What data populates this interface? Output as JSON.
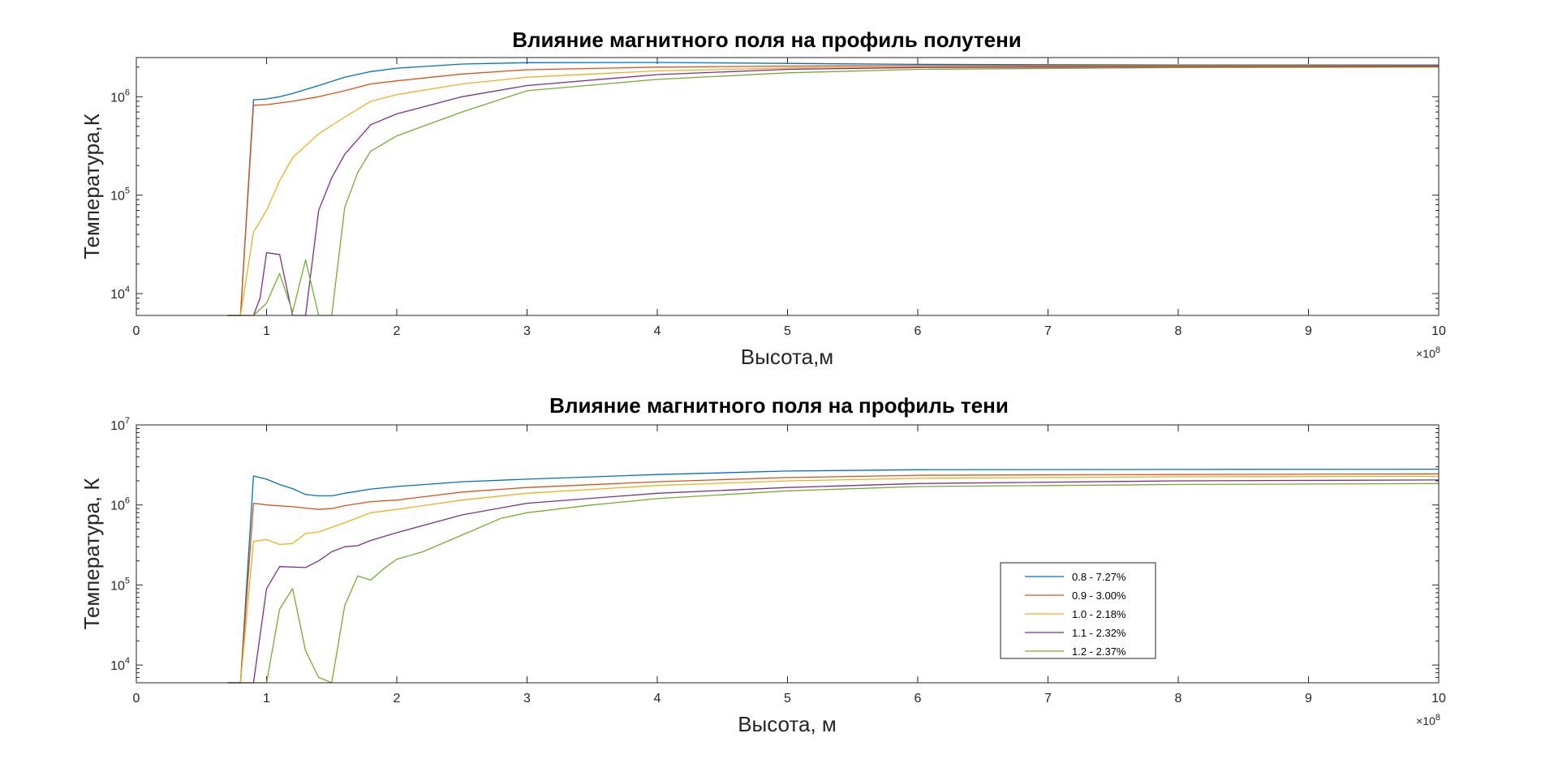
{
  "chart_data": [
    {
      "type": "line",
      "title": "Влияние магнитного поля на профиль полутени",
      "xlabel": "Высота,м",
      "ylabel": "Температура,К",
      "x_exponent_label": "×10",
      "x_exponent_power": "8",
      "x_ticks": [
        "0",
        "1",
        "2",
        "3",
        "4",
        "5",
        "6",
        "7",
        "8",
        "9",
        "10"
      ],
      "xlim": [
        0,
        10
      ],
      "ylim": [
        6000,
        2500000
      ],
      "y_scale": "log",
      "y_ticks": [
        {
          "value": 10000,
          "base": "10",
          "power": "4"
        },
        {
          "value": 100000,
          "base": "10",
          "power": "5"
        },
        {
          "value": 1000000,
          "base": "10",
          "power": "6"
        }
      ],
      "grid": false,
      "series": [
        {
          "name": "0.8 - 7.27%",
          "color": "#0072BD",
          "points": [
            [
              0.7,
              6000
            ],
            [
              0.8,
              6000
            ],
            [
              0.9,
              930000
            ],
            [
              1.0,
              950000
            ],
            [
              1.1,
              1000000
            ],
            [
              1.2,
              1080000
            ],
            [
              1.4,
              1300000
            ],
            [
              1.6,
              1580000
            ],
            [
              1.8,
              1800000
            ],
            [
              2.0,
              1950000
            ],
            [
              2.5,
              2150000
            ],
            [
              3.0,
              2220000
            ],
            [
              4.0,
              2230000
            ],
            [
              5.0,
              2180000
            ],
            [
              6.0,
              2130000
            ],
            [
              8.0,
              2100000
            ],
            [
              10.0,
              2100000
            ]
          ]
        },
        {
          "name": "0.9 - 3.00%",
          "color": "#D95319",
          "points": [
            [
              0.7,
              6000
            ],
            [
              0.8,
              6000
            ],
            [
              0.9,
              820000
            ],
            [
              1.0,
              830000
            ],
            [
              1.2,
              900000
            ],
            [
              1.4,
              1000000
            ],
            [
              1.6,
              1150000
            ],
            [
              1.8,
              1350000
            ],
            [
              2.0,
              1450000
            ],
            [
              2.5,
              1700000
            ],
            [
              3.0,
              1880000
            ],
            [
              4.0,
              2000000
            ],
            [
              5.0,
              2050000
            ],
            [
              6.0,
              2070000
            ],
            [
              8.0,
              2080000
            ],
            [
              10.0,
              2080000
            ]
          ]
        },
        {
          "name": "1.0 - 2.18%",
          "color": "#EDB120",
          "points": [
            [
              0.7,
              6000
            ],
            [
              0.8,
              6000
            ],
            [
              0.9,
              42000
            ],
            [
              1.0,
              70000
            ],
            [
              1.1,
              140000
            ],
            [
              1.2,
              240000
            ],
            [
              1.4,
              420000
            ],
            [
              1.6,
              620000
            ],
            [
              1.8,
              900000
            ],
            [
              2.0,
              1050000
            ],
            [
              2.5,
              1350000
            ],
            [
              3.0,
              1580000
            ],
            [
              4.0,
              1830000
            ],
            [
              5.0,
              1960000
            ],
            [
              6.0,
              2010000
            ],
            [
              8.0,
              2040000
            ],
            [
              10.0,
              2050000
            ]
          ]
        },
        {
          "name": "1.1 - 2.32%",
          "color": "#7E2F8E",
          "points": [
            [
              0.7,
              6000
            ],
            [
              0.8,
              6000
            ],
            [
              0.9,
              6000
            ],
            [
              0.95,
              9000
            ],
            [
              1.0,
              26000
            ],
            [
              1.1,
              25000
            ],
            [
              1.2,
              6000
            ],
            [
              1.3,
              6000
            ],
            [
              1.4,
              70000
            ],
            [
              1.5,
              150000
            ],
            [
              1.6,
              260000
            ],
            [
              1.8,
              520000
            ],
            [
              2.0,
              670000
            ],
            [
              2.5,
              1000000
            ],
            [
              3.0,
              1300000
            ],
            [
              4.0,
              1680000
            ],
            [
              5.0,
              1900000
            ],
            [
              6.0,
              1980000
            ],
            [
              8.0,
              2020000
            ],
            [
              10.0,
              2040000
            ]
          ]
        },
        {
          "name": "1.2 - 2.37%",
          "color": "#77AC30",
          "points": [
            [
              0.7,
              6000
            ],
            [
              0.8,
              6000
            ],
            [
              0.9,
              6000
            ],
            [
              1.0,
              8000
            ],
            [
              1.1,
              16000
            ],
            [
              1.2,
              6500
            ],
            [
              1.3,
              22000
            ],
            [
              1.4,
              6000
            ],
            [
              1.5,
              6000
            ],
            [
              1.6,
              75000
            ],
            [
              1.7,
              170000
            ],
            [
              1.8,
              280000
            ],
            [
              2.0,
              400000
            ],
            [
              2.5,
              700000
            ],
            [
              3.0,
              1150000
            ],
            [
              4.0,
              1500000
            ],
            [
              5.0,
              1750000
            ],
            [
              6.0,
              1900000
            ],
            [
              8.0,
              1980000
            ],
            [
              10.0,
              2000000
            ]
          ]
        }
      ]
    },
    {
      "type": "line",
      "title": "Влияние магнитного поля на профиль тени",
      "xlabel": "Высота, м",
      "ylabel": "Температура, К",
      "x_exponent_label": "×10",
      "x_exponent_power": "8",
      "x_ticks": [
        "0",
        "1",
        "2",
        "3",
        "4",
        "5",
        "6",
        "7",
        "8",
        "9",
        "10"
      ],
      "xlim": [
        0,
        10
      ],
      "ylim": [
        6000,
        10000000
      ],
      "y_scale": "log",
      "y_ticks": [
        {
          "value": 10000,
          "base": "10",
          "power": "4"
        },
        {
          "value": 100000,
          "base": "10",
          "power": "5"
        },
        {
          "value": 1000000,
          "base": "10",
          "power": "6"
        },
        {
          "value": 10000000,
          "base": "10",
          "power": "7"
        }
      ],
      "grid": false,
      "legend": {
        "placement": "inside-lower-right",
        "entries": [
          "0.8 - 7.27%",
          "0.9 - 3.00%",
          "1.0 - 2.18%",
          "1.1 - 2.32%",
          "1.2 - 2.37%"
        ]
      },
      "series": [
        {
          "name": "0.8 - 7.27%",
          "color": "#0072BD",
          "points": [
            [
              0.7,
              6000
            ],
            [
              0.8,
              6000
            ],
            [
              0.9,
              2300000
            ],
            [
              1.0,
              2100000
            ],
            [
              1.1,
              1800000
            ],
            [
              1.2,
              1600000
            ],
            [
              1.3,
              1350000
            ],
            [
              1.4,
              1300000
            ],
            [
              1.5,
              1300000
            ],
            [
              1.6,
              1400000
            ],
            [
              1.8,
              1580000
            ],
            [
              2.0,
              1700000
            ],
            [
              2.5,
              1950000
            ],
            [
              3.0,
              2100000
            ],
            [
              4.0,
              2400000
            ],
            [
              5.0,
              2650000
            ],
            [
              6.0,
              2750000
            ],
            [
              8.0,
              2780000
            ],
            [
              10.0,
              2800000
            ]
          ]
        },
        {
          "name": "0.9 - 3.00%",
          "color": "#D95319",
          "points": [
            [
              0.7,
              6000
            ],
            [
              0.8,
              6000
            ],
            [
              0.9,
              1050000
            ],
            [
              1.0,
              1000000
            ],
            [
              1.2,
              950000
            ],
            [
              1.4,
              880000
            ],
            [
              1.5,
              900000
            ],
            [
              1.6,
              980000
            ],
            [
              1.8,
              1100000
            ],
            [
              2.0,
              1150000
            ],
            [
              2.5,
              1450000
            ],
            [
              3.0,
              1650000
            ],
            [
              4.0,
              1950000
            ],
            [
              5.0,
              2200000
            ],
            [
              6.0,
              2350000
            ],
            [
              8.0,
              2400000
            ],
            [
              10.0,
              2450000
            ]
          ]
        },
        {
          "name": "1.0 - 2.18%",
          "color": "#EDB120",
          "points": [
            [
              0.7,
              6000
            ],
            [
              0.8,
              6000
            ],
            [
              0.9,
              350000
            ],
            [
              1.0,
              370000
            ],
            [
              1.1,
              320000
            ],
            [
              1.2,
              330000
            ],
            [
              1.3,
              440000
            ],
            [
              1.4,
              460000
            ],
            [
              1.6,
              600000
            ],
            [
              1.8,
              800000
            ],
            [
              2.0,
              880000
            ],
            [
              2.5,
              1150000
            ],
            [
              3.0,
              1400000
            ],
            [
              4.0,
              1750000
            ],
            [
              5.0,
              2000000
            ],
            [
              6.0,
              2150000
            ],
            [
              8.0,
              2250000
            ],
            [
              10.0,
              2280000
            ]
          ]
        },
        {
          "name": "1.1 - 2.32%",
          "color": "#7E2F8E",
          "points": [
            [
              0.7,
              6000
            ],
            [
              0.8,
              6000
            ],
            [
              0.9,
              6000
            ],
            [
              1.0,
              90000
            ],
            [
              1.1,
              170000
            ],
            [
              1.3,
              165000
            ],
            [
              1.4,
              200000
            ],
            [
              1.5,
              260000
            ],
            [
              1.6,
              300000
            ],
            [
              1.7,
              310000
            ],
            [
              1.8,
              360000
            ],
            [
              2.0,
              450000
            ],
            [
              2.5,
              750000
            ],
            [
              3.0,
              1050000
            ],
            [
              4.0,
              1400000
            ],
            [
              5.0,
              1650000
            ],
            [
              6.0,
              1850000
            ],
            [
              8.0,
              2000000
            ],
            [
              10.0,
              2050000
            ]
          ]
        },
        {
          "name": "1.2 - 2.37%",
          "color": "#77AC30",
          "points": [
            [
              0.7,
              6000
            ],
            [
              0.8,
              6000
            ],
            [
              0.9,
              6000
            ],
            [
              1.0,
              6000
            ],
            [
              1.1,
              50000
            ],
            [
              1.2,
              90000
            ],
            [
              1.3,
              15000
            ],
            [
              1.4,
              7000
            ],
            [
              1.5,
              6000
            ],
            [
              1.6,
              55000
            ],
            [
              1.7,
              130000
            ],
            [
              1.8,
              115000
            ],
            [
              1.9,
              160000
            ],
            [
              2.0,
              210000
            ],
            [
              2.2,
              260000
            ],
            [
              2.5,
              420000
            ],
            [
              2.8,
              680000
            ],
            [
              3.0,
              800000
            ],
            [
              3.5,
              1000000
            ],
            [
              4.0,
              1200000
            ],
            [
              5.0,
              1500000
            ],
            [
              6.0,
              1700000
            ],
            [
              8.0,
              1800000
            ],
            [
              10.0,
              1850000
            ]
          ]
        }
      ]
    }
  ]
}
